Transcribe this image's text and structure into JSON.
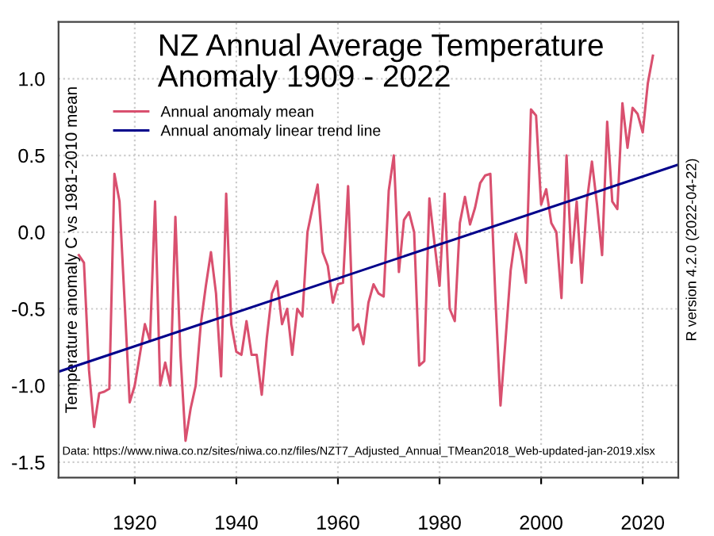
{
  "chart_data": {
    "type": "line",
    "title": "NZ Annual Average Temperature\nAnomaly 1909 - 2022",
    "ylabel": "Temperature anomaly C vs 1981-2010 mean",
    "annotations": [
      "Data: https://www.niwa.co.nz/sites/niwa.co.nz/files/NZT7_Adjusted_Annual_TMean2018_Web-updated-jan-2019.xlsx",
      "R version 4.2.0 (2022-04-22)"
    ],
    "x": [
      1909,
      1910,
      1911,
      1912,
      1913,
      1914,
      1915,
      1916,
      1917,
      1918,
      1919,
      1920,
      1921,
      1922,
      1923,
      1924,
      1925,
      1926,
      1927,
      1928,
      1929,
      1930,
      1931,
      1932,
      1933,
      1934,
      1935,
      1936,
      1937,
      1938,
      1939,
      1940,
      1941,
      1942,
      1943,
      1944,
      1945,
      1946,
      1947,
      1948,
      1949,
      1950,
      1951,
      1952,
      1953,
      1954,
      1955,
      1956,
      1957,
      1958,
      1959,
      1960,
      1961,
      1962,
      1963,
      1964,
      1965,
      1966,
      1967,
      1968,
      1969,
      1970,
      1971,
      1972,
      1973,
      1974,
      1975,
      1976,
      1977,
      1978,
      1979,
      1980,
      1981,
      1982,
      1983,
      1984,
      1985,
      1986,
      1987,
      1988,
      1989,
      1990,
      1991,
      1992,
      1993,
      1994,
      1995,
      1996,
      1997,
      1998,
      1999,
      2000,
      2001,
      2002,
      2003,
      2004,
      2005,
      2006,
      2007,
      2008,
      2009,
      2010,
      2011,
      2012,
      2013,
      2014,
      2015,
      2016,
      2017,
      2018,
      2019,
      2020,
      2021,
      2022
    ],
    "series": [
      {
        "name": "Annual anomaly mean",
        "color": "#d9506f",
        "values": [
          -0.15,
          -0.2,
          -0.9,
          -1.27,
          -1.05,
          -1.04,
          -1.02,
          0.38,
          0.2,
          -0.45,
          -1.11,
          -1.0,
          -0.8,
          -0.6,
          -0.71,
          0.2,
          -1.0,
          -0.85,
          -1.0,
          0.1,
          -0.8,
          -1.36,
          -1.15,
          -1.0,
          -0.6,
          -0.35,
          -0.13,
          -0.4,
          -0.94,
          0.25,
          -0.6,
          -0.78,
          -0.8,
          -0.58,
          -0.8,
          -0.8,
          -1.06,
          -0.69,
          -0.4,
          -0.32,
          -0.6,
          -0.5,
          -0.8,
          -0.5,
          -0.55,
          0.0,
          0.16,
          0.31,
          -0.13,
          -0.22,
          -0.46,
          -0.34,
          -0.33,
          0.3,
          -0.64,
          -0.6,
          -0.73,
          -0.46,
          -0.34,
          -0.4,
          -0.42,
          0.27,
          0.5,
          -0.26,
          0.08,
          0.13,
          0.0,
          -0.87,
          -0.84,
          0.22,
          -0.07,
          -0.35,
          0.25,
          -0.5,
          -0.58,
          0.06,
          0.23,
          0.05,
          0.16,
          0.32,
          0.37,
          0.38,
          -0.43,
          -1.13,
          -0.7,
          -0.25,
          -0.01,
          -0.13,
          -0.33,
          0.8,
          0.76,
          0.18,
          0.28,
          0.06,
          0.0,
          -0.43,
          0.5,
          -0.2,
          0.2,
          -0.33,
          0.2,
          0.46,
          0.18,
          -0.15,
          0.72,
          0.2,
          0.15,
          0.84,
          0.55,
          0.81,
          0.77,
          0.65,
          0.97,
          1.15
        ]
      },
      {
        "name": "Annual anomaly linear trend line",
        "color": "#00008b",
        "x": [
          1905,
          2027
        ],
        "values": [
          -0.91,
          0.44
        ]
      }
    ],
    "xlim": [
      1905,
      2027
    ],
    "xticks": [
      1920,
      1940,
      1960,
      1980,
      2000,
      2020
    ],
    "ylim": [
      -1.6,
      1.37
    ],
    "yticks": [
      -1.5,
      {
        "value": -1.0,
        "label": "-1.0"
      },
      -0.5,
      {
        "value": 0.0,
        "label": "0.0"
      },
      0.5,
      {
        "value": 1.0,
        "label": "1.0"
      }
    ],
    "grid": true,
    "legend": "top left",
    "line_style": "solid",
    "marker": "none"
  }
}
